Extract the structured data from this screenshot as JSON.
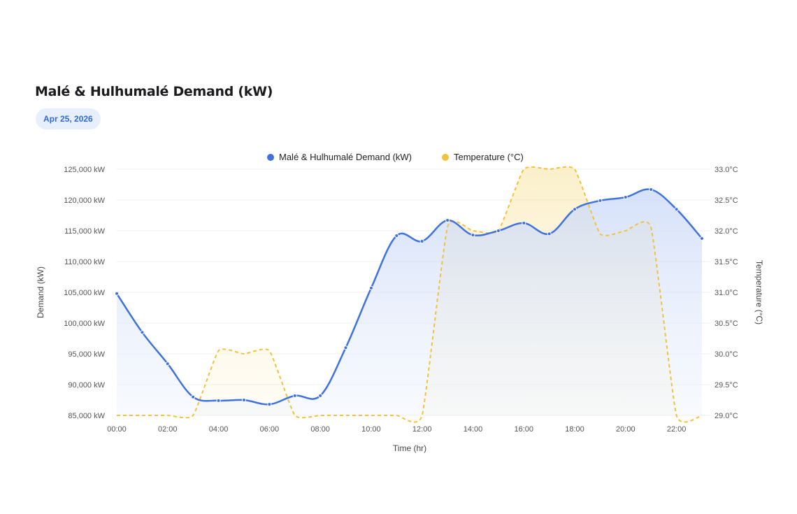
{
  "header": {
    "title": "Malé & Hulhumalé Demand (kW)",
    "date_badge": "Apr 25, 2026"
  },
  "colors": {
    "demand": "#3f72e0",
    "temperature": "#f2c23c"
  },
  "chart_data": {
    "type": "line",
    "title": "Malé & Hulhumalé Demand (kW)",
    "xlabel": "Time (hr)",
    "ylabel": "Demand (kW)",
    "y2label": "Temperature (°C)",
    "legend_position": "top-center",
    "grid": true,
    "x": [
      "00:00",
      "01:00",
      "02:00",
      "03:00",
      "04:00",
      "05:00",
      "06:00",
      "07:00",
      "08:00",
      "09:00",
      "10:00",
      "11:00",
      "12:00",
      "13:00",
      "14:00",
      "15:00",
      "16:00",
      "17:00",
      "18:00",
      "19:00",
      "20:00",
      "21:00",
      "22:00",
      "23:00"
    ],
    "x_tick_labels": [
      "00:00",
      "02:00",
      "04:00",
      "06:00",
      "08:00",
      "10:00",
      "12:00",
      "14:00",
      "16:00",
      "18:00",
      "20:00",
      "22:00"
    ],
    "ylim": [
      85000,
      125000
    ],
    "y_tick_labels": [
      "125,000 kW",
      "120,000 kW",
      "115,000 kW",
      "110,000 kW",
      "105,000 kW",
      "100,000 kW",
      "95,000 kW",
      "90,000 kW",
      "85,000 kW"
    ],
    "y2lim": [
      29.0,
      33.0
    ],
    "y2_tick_labels": [
      "33.0°C",
      "32.5°C",
      "32.0°C",
      "31.5°C",
      "31.0°C",
      "30.5°C",
      "30.0°C",
      "29.5°C",
      "29.0°C"
    ],
    "series": [
      {
        "name": "Malé & Hulhumalé Demand (kW)",
        "axis": "left",
        "style": "solid-filled",
        "values": [
          104800,
          98500,
          93400,
          88000,
          87400,
          87500,
          86800,
          88200,
          88200,
          96000,
          105700,
          114200,
          113300,
          116700,
          114300,
          115000,
          116250,
          114500,
          118500,
          119900,
          120450,
          121700,
          118500,
          113750
        ]
      },
      {
        "name": "Temperature (°C)",
        "axis": "right",
        "style": "dashed-filled",
        "values": [
          29.0,
          29.0,
          29.0,
          29.0,
          30.05,
          30.0,
          30.05,
          29.0,
          29.0,
          29.0,
          29.0,
          29.0,
          29.0,
          32.06,
          32.0,
          32.0,
          33.0,
          33.0,
          33.0,
          31.95,
          32.0,
          32.05,
          29.0,
          29.0
        ]
      }
    ]
  }
}
